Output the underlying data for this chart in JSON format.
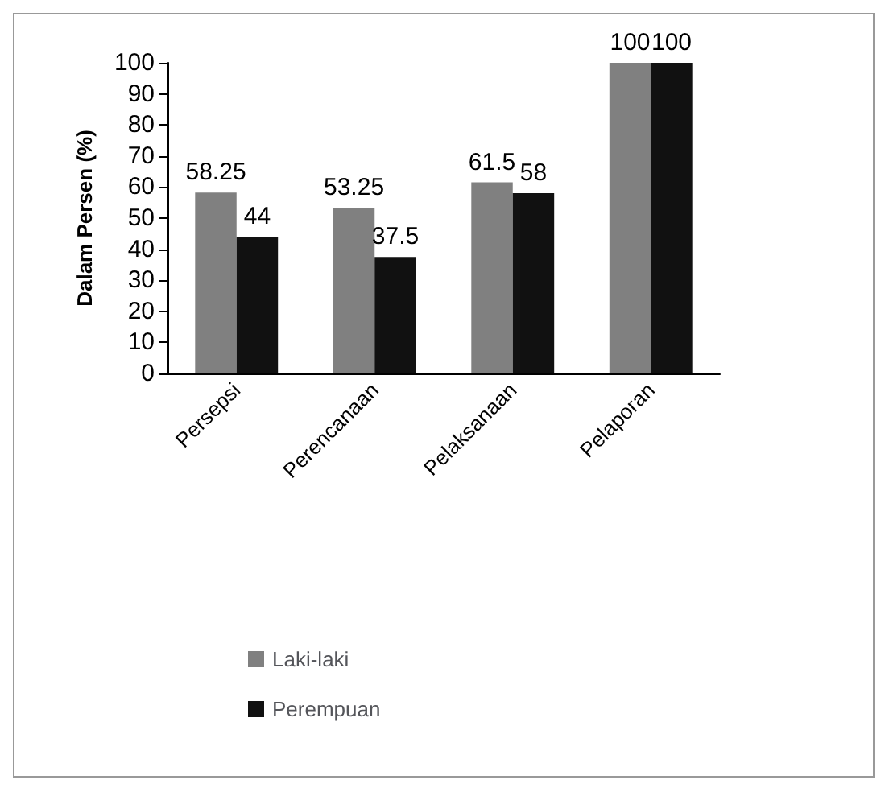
{
  "chart_data": {
    "type": "bar",
    "ylabel": "Dalam Persen (%)",
    "categories": [
      "Persepsi",
      "Perencanaan",
      "Pelaksanaan",
      "Pelaporan"
    ],
    "series": [
      {
        "name": "Laki-laki",
        "color": "#808080",
        "values": [
          58.25,
          53.25,
          61.5,
          100
        ]
      },
      {
        "name": "Perempuan",
        "color": "#111111",
        "values": [
          44,
          37.5,
          58,
          100
        ]
      }
    ],
    "ylim": [
      0,
      100
    ],
    "yticks": [
      0,
      10,
      20,
      30,
      40,
      50,
      60,
      70,
      80,
      90,
      100
    ],
    "data_labels": true,
    "legend": "bottom left",
    "grid": false
  }
}
